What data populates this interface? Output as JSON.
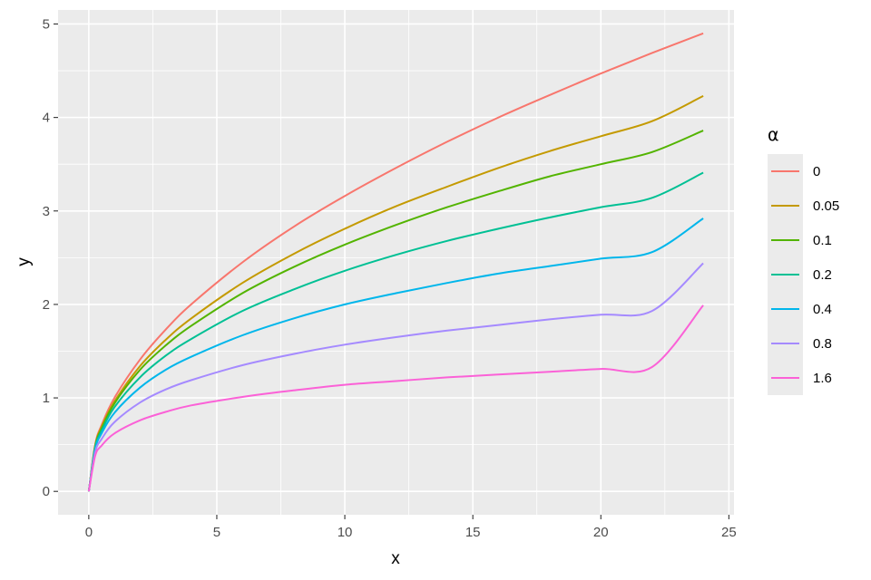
{
  "chart_data": {
    "type": "line",
    "xlabel": "x",
    "ylabel": "y",
    "xlim": [
      -1.2,
      25.2
    ],
    "ylim": [
      -0.25,
      5.15
    ],
    "x_ticks": [
      0,
      5,
      10,
      15,
      20,
      25
    ],
    "x_tick_labels": [
      "0",
      "5",
      "10",
      "15",
      "20",
      "25"
    ],
    "y_ticks": [
      0,
      1,
      2,
      3,
      4,
      5
    ],
    "y_tick_labels": [
      "0",
      "1",
      "2",
      "3",
      "4",
      "5"
    ],
    "grid": true,
    "legend": {
      "title": "α",
      "placement": "right"
    },
    "x": [
      0,
      0.25,
      0.5,
      1,
      2,
      3,
      4,
      6,
      8,
      10,
      12,
      14,
      16,
      18,
      20,
      22,
      24
    ],
    "series": [
      {
        "name": "0",
        "color": "#F8766D",
        "values": [
          0,
          0.5,
          0.71,
          1.0,
          1.41,
          1.73,
          2.0,
          2.45,
          2.83,
          3.16,
          3.46,
          3.74,
          4.0,
          4.24,
          4.47,
          4.69,
          4.9
        ]
      },
      {
        "name": "0.05",
        "color": "#C49A00",
        "values": [
          0,
          0.49,
          0.69,
          0.96,
          1.34,
          1.62,
          1.85,
          2.23,
          2.54,
          2.81,
          3.05,
          3.26,
          3.46,
          3.64,
          3.8,
          3.96,
          4.23
        ]
      },
      {
        "name": "0.1",
        "color": "#53B400",
        "values": [
          0,
          0.48,
          0.67,
          0.94,
          1.3,
          1.56,
          1.77,
          2.12,
          2.4,
          2.64,
          2.85,
          3.04,
          3.21,
          3.37,
          3.5,
          3.63,
          3.86
        ]
      },
      {
        "name": "0.2",
        "color": "#00C094",
        "values": [
          0,
          0.47,
          0.65,
          0.9,
          1.22,
          1.45,
          1.63,
          1.93,
          2.16,
          2.36,
          2.53,
          2.68,
          2.81,
          2.93,
          3.04,
          3.14,
          3.41
        ]
      },
      {
        "name": "0.4",
        "color": "#00B6EB",
        "values": [
          0,
          0.45,
          0.62,
          0.84,
          1.11,
          1.3,
          1.44,
          1.67,
          1.85,
          2.0,
          2.12,
          2.23,
          2.33,
          2.41,
          2.49,
          2.56,
          2.92
        ]
      },
      {
        "name": "0.8",
        "color": "#A58AFF",
        "values": [
          0,
          0.42,
          0.56,
          0.74,
          0.95,
          1.09,
          1.19,
          1.35,
          1.47,
          1.57,
          1.65,
          1.72,
          1.78,
          1.84,
          1.89,
          1.93,
          2.44
        ]
      },
      {
        "name": "1.6",
        "color": "#FB61D7",
        "values": [
          0,
          0.38,
          0.49,
          0.62,
          0.76,
          0.85,
          0.92,
          1.01,
          1.08,
          1.14,
          1.18,
          1.22,
          1.25,
          1.28,
          1.31,
          1.33,
          1.99
        ]
      }
    ]
  }
}
